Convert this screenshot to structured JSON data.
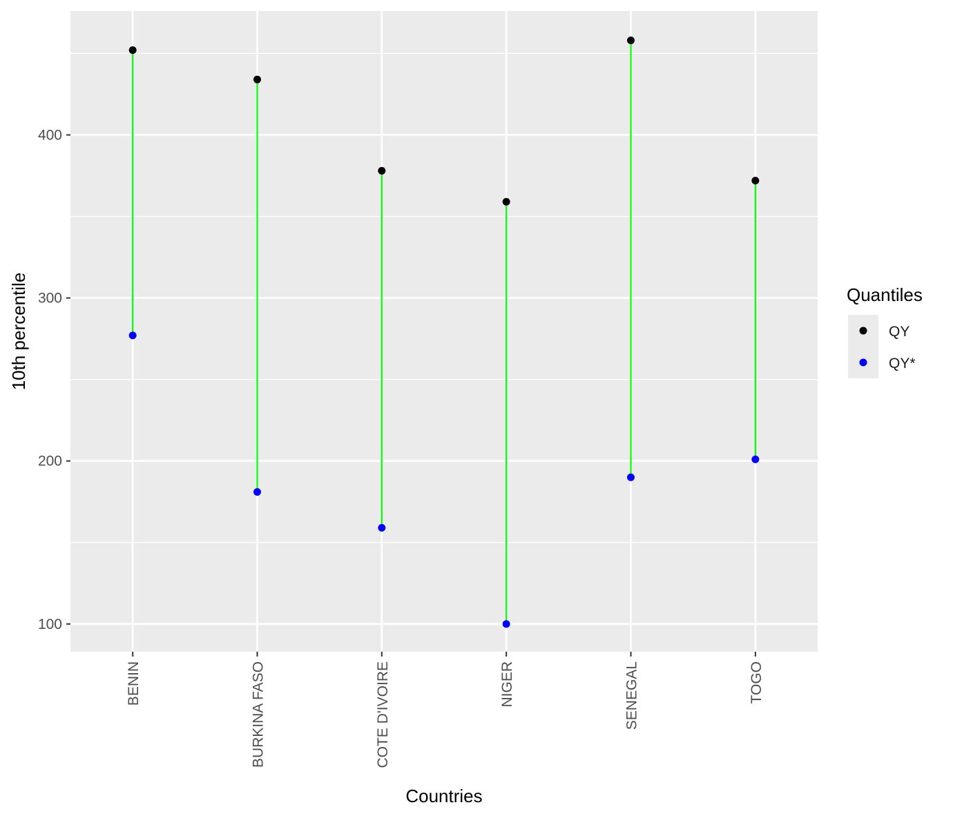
{
  "chart_data": {
    "type": "scatter",
    "title": "",
    "xlabel": "Countries",
    "ylabel": "10th percentile",
    "categories": [
      "BENIN",
      "BURKINA FASO",
      "COTE D'IVOIRE",
      "NIGER",
      "SENEGAL",
      "TOGO"
    ],
    "ylim": [
      83,
      476
    ],
    "yticks": [
      100,
      200,
      300,
      400
    ],
    "ytick_labels": [
      "100",
      "200",
      "300",
      "400"
    ],
    "grid": true,
    "series": [
      {
        "name": "QY",
        "color": "#000000",
        "values": [
          452,
          434,
          378,
          359,
          458,
          372
        ]
      },
      {
        "name": "QY*",
        "color": "#0000ff",
        "values": [
          277,
          181,
          159,
          100,
          190,
          201
        ]
      }
    ],
    "segments_color": "#00ff00",
    "legend": {
      "title": "Quantiles",
      "position": "right",
      "entries": [
        "QY",
        "QY*"
      ]
    },
    "panel_background": "#ebebeb",
    "grid_color": "#ffffff"
  }
}
